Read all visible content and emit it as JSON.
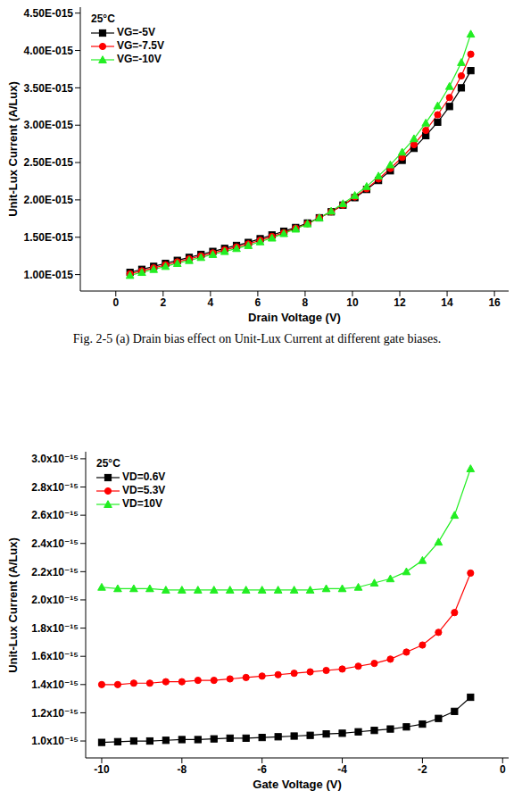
{
  "chart_data": [
    {
      "type": "line",
      "annotations": [
        "25°C"
      ],
      "xlabel": "Drain Voltage (V)",
      "ylabel": "Unit-Lux Current (A/Lux)",
      "caption": "Fig. 2-5 (a) Drain bias effect on Unit-Lux Current at different gate biases.",
      "xlim": [
        -1.5,
        16.6
      ],
      "xticks": [
        0,
        2,
        4,
        6,
        8,
        10,
        12,
        14,
        16
      ],
      "ylim": [
        7.8e-16,
        4.58e-15
      ],
      "yticks": [
        {
          "value": 1e-15,
          "label": "1.00E-015"
        },
        {
          "value": 1.5e-15,
          "label": "1.50E-015"
        },
        {
          "value": 2e-15,
          "label": "2.00E-015"
        },
        {
          "value": 2.5e-15,
          "label": "2.50E-015"
        },
        {
          "value": 3e-15,
          "label": "3.00E-015"
        },
        {
          "value": 3.5e-15,
          "label": "3.50E-015"
        },
        {
          "value": 4e-15,
          "label": "4.00E-015"
        },
        {
          "value": 4.5e-15,
          "label": "4.50E-015"
        }
      ],
      "grid": false,
      "legend": "upper left",
      "x": [
        0.6,
        1.1,
        1.6,
        2.1,
        2.6,
        3.1,
        3.6,
        4.1,
        4.6,
        5.1,
        5.6,
        6.1,
        6.6,
        7.1,
        7.6,
        8.1,
        8.6,
        9.1,
        9.6,
        10.1,
        10.6,
        11.1,
        11.6,
        12.1,
        12.6,
        13.1,
        13.6,
        14.1,
        14.6,
        15.0
      ],
      "series": [
        {
          "name": "VG=-5V",
          "color": "#000000",
          "marker": "square",
          "values": [
            1.03e-15,
            1.07e-15,
            1.11e-15,
            1.15e-15,
            1.19e-15,
            1.23e-15,
            1.27e-15,
            1.31e-15,
            1.35e-15,
            1.39e-15,
            1.43e-15,
            1.48e-15,
            1.53e-15,
            1.58e-15,
            1.63e-15,
            1.69e-15,
            1.76e-15,
            1.84e-15,
            1.93e-15,
            2.03e-15,
            2.14e-15,
            2.26e-15,
            2.39e-15,
            2.53e-15,
            2.69e-15,
            2.86e-15,
            3.04e-15,
            3.25e-15,
            3.5e-15,
            3.73e-15
          ]
        },
        {
          "name": "VG=-7.5V",
          "color": "#ff0000",
          "marker": "circle",
          "values": [
            1.01e-15,
            1.05e-15,
            1.09e-15,
            1.13e-15,
            1.17e-15,
            1.21e-15,
            1.25e-15,
            1.29e-15,
            1.33e-15,
            1.37e-15,
            1.41e-15,
            1.46e-15,
            1.51e-15,
            1.56e-15,
            1.62e-15,
            1.68e-15,
            1.76e-15,
            1.84e-15,
            1.93e-15,
            2.04e-15,
            2.15e-15,
            2.28e-15,
            2.42e-15,
            2.57e-15,
            2.74e-15,
            2.93e-15,
            3.14e-15,
            3.37e-15,
            3.66e-15,
            3.95e-15
          ]
        },
        {
          "name": "VG=-10V",
          "color": "#22ee22",
          "marker": "triangle",
          "values": [
            9.9e-16,
            1.03e-15,
            1.07e-15,
            1.11e-15,
            1.15e-15,
            1.19e-15,
            1.23e-15,
            1.27e-15,
            1.31e-15,
            1.35e-15,
            1.39e-15,
            1.44e-15,
            1.49e-15,
            1.55e-15,
            1.61e-15,
            1.68e-15,
            1.76e-15,
            1.85e-15,
            1.95e-15,
            2.06e-15,
            2.18e-15,
            2.32e-15,
            2.47e-15,
            2.64e-15,
            2.82e-15,
            3.03e-15,
            3.26e-15,
            3.52e-15,
            3.84e-15,
            4.22e-15
          ]
        }
      ]
    },
    {
      "type": "line",
      "annotations": [
        "25°C"
      ],
      "xlabel": "Gate Voltage (V)",
      "ylabel": "Unit-Lux Current (A/Lux)",
      "xlim": [
        -10.4,
        0.15
      ],
      "xticks": [
        -10,
        -8,
        -6,
        -4,
        -2,
        0
      ],
      "ylim": [
        8.8e-16,
        3.05e-15
      ],
      "yticks": [
        {
          "value": 1e-15,
          "label": "1.0x10⁻¹⁵"
        },
        {
          "value": 1.2e-15,
          "label": "1.2x10⁻¹⁵"
        },
        {
          "value": 1.4e-15,
          "label": "1.4x10⁻¹⁵"
        },
        {
          "value": 1.6e-15,
          "label": "1.6x10⁻¹⁵"
        },
        {
          "value": 1.8e-15,
          "label": "1.8x10⁻¹⁵"
        },
        {
          "value": 2e-15,
          "label": "2.0x10⁻¹⁵"
        },
        {
          "value": 2.2e-15,
          "label": "2.2x10⁻¹⁵"
        },
        {
          "value": 2.4e-15,
          "label": "2.4x10⁻¹⁵"
        },
        {
          "value": 2.6e-15,
          "label": "2.6x10⁻¹⁵"
        },
        {
          "value": 2.8e-15,
          "label": "2.8x10⁻¹⁵"
        },
        {
          "value": 3e-15,
          "label": "3.0x10⁻¹⁵"
        }
      ],
      "grid": false,
      "legend": "upper left",
      "x": [
        -10,
        -9.6,
        -9.2,
        -8.8,
        -8.4,
        -8,
        -7.6,
        -7.2,
        -6.8,
        -6.4,
        -6,
        -5.6,
        -5.2,
        -4.8,
        -4.4,
        -4,
        -3.6,
        -3.2,
        -2.8,
        -2.4,
        -2,
        -1.6,
        -1.2,
        -0.8
      ],
      "series": [
        {
          "name": "VD=0.6V",
          "color": "#000000",
          "marker": "square",
          "values": [
            9.9e-16,
            9.95e-16,
            1e-15,
            1e-15,
            1.005e-15,
            1.01e-15,
            1.01e-15,
            1.015e-15,
            1.02e-15,
            1.02e-15,
            1.025e-15,
            1.03e-15,
            1.035e-15,
            1.04e-15,
            1.05e-15,
            1.055e-15,
            1.065e-15,
            1.075e-15,
            1.085e-15,
            1.1e-15,
            1.12e-15,
            1.16e-15,
            1.21e-15,
            1.31e-15
          ]
        },
        {
          "name": "VD=5.3V",
          "color": "#ff0000",
          "marker": "circle",
          "values": [
            1.4e-15,
            1.4e-15,
            1.41e-15,
            1.41e-15,
            1.42e-15,
            1.42e-15,
            1.43e-15,
            1.43e-15,
            1.44e-15,
            1.45e-15,
            1.46e-15,
            1.47e-15,
            1.48e-15,
            1.49e-15,
            1.5e-15,
            1.51e-15,
            1.53e-15,
            1.55e-15,
            1.58e-15,
            1.63e-15,
            1.68e-15,
            1.77e-15,
            1.91e-15,
            2.19e-15
          ]
        },
        {
          "name": "VD=10V",
          "color": "#22ee22",
          "marker": "triangle",
          "values": [
            2.09e-15,
            2.08e-15,
            2.08e-15,
            2.08e-15,
            2.07e-15,
            2.07e-15,
            2.07e-15,
            2.07e-15,
            2.07e-15,
            2.07e-15,
            2.07e-15,
            2.07e-15,
            2.07e-15,
            2.07e-15,
            2.08e-15,
            2.08e-15,
            2.09e-15,
            2.12e-15,
            2.15e-15,
            2.2e-15,
            2.28e-15,
            2.41e-15,
            2.6e-15,
            2.93e-15
          ]
        }
      ]
    }
  ]
}
